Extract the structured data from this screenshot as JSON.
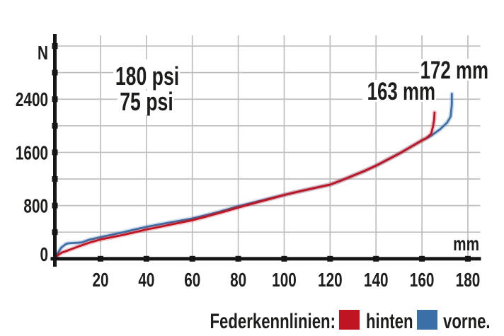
{
  "colors": {
    "axis": "#161616",
    "grid": "#bfbfbf",
    "text": "#1d1d1b",
    "background": "#ffffff",
    "rear_red": "#bf1422",
    "front_blue": "#3b6fa7"
  },
  "chart_data": {
    "type": "line",
    "grid": true,
    "x_axis": {
      "unit": "mm",
      "min": 0,
      "max": 185,
      "ticks": [
        20,
        40,
        60,
        80,
        100,
        120,
        140,
        160,
        180
      ]
    },
    "y_axis": {
      "unit": "N",
      "min": 0,
      "max": 3200,
      "tick_step": 400,
      "labels": [
        {
          "value": 3200,
          "text": "N"
        },
        {
          "value": 2400,
          "text": "2400"
        },
        {
          "value": 1600,
          "text": "1600"
        },
        {
          "value": 800,
          "text": "800"
        },
        {
          "value": 0,
          "text": "0"
        }
      ]
    },
    "legend": {
      "title": "Federkennlinien:",
      "position": "bottom-right"
    },
    "series": [
      {
        "id": "hinten",
        "label": "hinten",
        "pressure_label": "180 psi",
        "end_label": "163 mm",
        "color": "#bf1422",
        "points": [
          [
            0,
            0
          ],
          [
            1.5,
            55
          ],
          [
            3,
            90
          ],
          [
            5,
            115
          ],
          [
            7,
            140
          ],
          [
            10,
            180
          ],
          [
            15,
            240
          ],
          [
            20,
            290
          ],
          [
            25,
            325
          ],
          [
            30,
            360
          ],
          [
            35,
            400
          ],
          [
            40,
            440
          ],
          [
            45,
            475
          ],
          [
            50,
            510
          ],
          [
            55,
            545
          ],
          [
            60,
            580
          ],
          [
            65,
            625
          ],
          [
            70,
            672
          ],
          [
            75,
            720
          ],
          [
            80,
            770
          ],
          [
            85,
            818
          ],
          [
            90,
            865
          ],
          [
            95,
            912
          ],
          [
            100,
            960
          ],
          [
            105,
            1000
          ],
          [
            110,
            1040
          ],
          [
            115,
            1078
          ],
          [
            120,
            1115
          ],
          [
            125,
            1180
          ],
          [
            130,
            1250
          ],
          [
            135,
            1320
          ],
          [
            140,
            1400
          ],
          [
            145,
            1490
          ],
          [
            150,
            1580
          ],
          [
            155,
            1680
          ],
          [
            160,
            1780
          ],
          [
            162,
            1815
          ],
          [
            163,
            1845
          ],
          [
            164,
            1880
          ],
          [
            164.8,
            1990
          ],
          [
            165.3,
            2090
          ],
          [
            165.5,
            2200
          ]
        ]
      },
      {
        "id": "vorne",
        "label": "vorne.",
        "pressure_label": "75 psi",
        "end_label": "172 mm",
        "color": "#3b6fa7",
        "points": [
          [
            0,
            0
          ],
          [
            1.5,
            90
          ],
          [
            3,
            170
          ],
          [
            5,
            222
          ],
          [
            6,
            232
          ],
          [
            8,
            237
          ],
          [
            10,
            240
          ],
          [
            12,
            247
          ],
          [
            15,
            285
          ],
          [
            20,
            325
          ],
          [
            25,
            363
          ],
          [
            30,
            400
          ],
          [
            35,
            440
          ],
          [
            40,
            480
          ],
          [
            45,
            513
          ],
          [
            50,
            545
          ],
          [
            55,
            575
          ],
          [
            60,
            605
          ],
          [
            65,
            648
          ],
          [
            70,
            692
          ],
          [
            75,
            740
          ],
          [
            80,
            790
          ],
          [
            85,
            832
          ],
          [
            90,
            875
          ],
          [
            95,
            918
          ],
          [
            100,
            960
          ],
          [
            105,
            1000
          ],
          [
            110,
            1040
          ],
          [
            115,
            1078
          ],
          [
            120,
            1115
          ],
          [
            125,
            1180
          ],
          [
            130,
            1250
          ],
          [
            135,
            1320
          ],
          [
            140,
            1400
          ],
          [
            145,
            1490
          ],
          [
            150,
            1580
          ],
          [
            155,
            1680
          ],
          [
            160,
            1780
          ],
          [
            164,
            1850
          ],
          [
            168,
            1950
          ],
          [
            171,
            2050
          ],
          [
            172.5,
            2140
          ],
          [
            173,
            2320
          ],
          [
            173,
            2480
          ]
        ]
      }
    ]
  }
}
